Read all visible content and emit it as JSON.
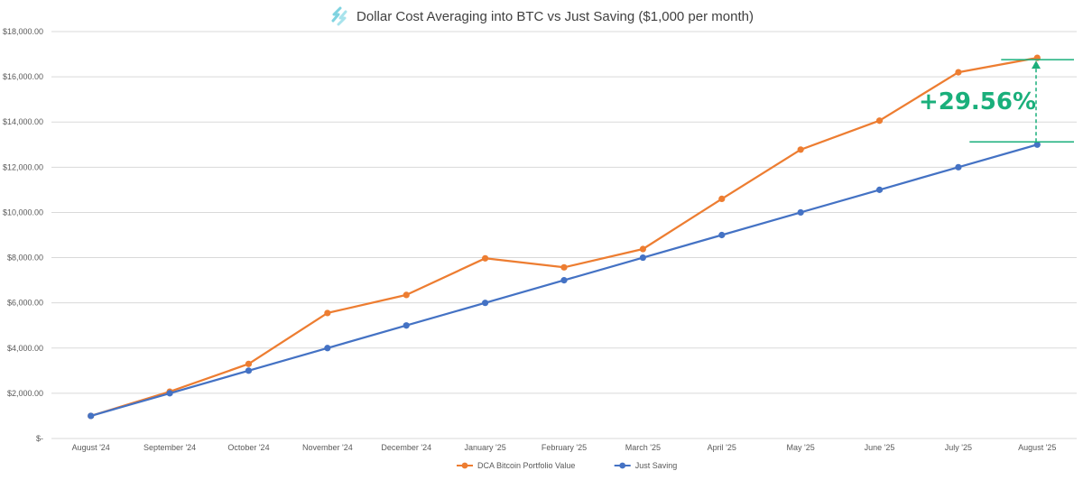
{
  "title": "Dollar Cost Averaging into BTC vs Just Saving ($1,000 per month)",
  "icon": "logo-icon",
  "chart_data": {
    "type": "line",
    "title": "Dollar Cost Averaging into BTC vs Just Saving ($1,000 per month)",
    "xlabel": "",
    "ylabel": "",
    "categories": [
      "August '24",
      "September '24",
      "October '24",
      "November '24",
      "December '24",
      "January '25",
      "February '25",
      "March '25",
      "April '25",
      "May '25",
      "June '25",
      "July '25",
      "August '25"
    ],
    "ylim": [
      0,
      18000
    ],
    "yticks": [
      0,
      2000,
      4000,
      6000,
      8000,
      10000,
      12000,
      14000,
      16000,
      18000
    ],
    "ytick_labels": [
      "$-",
      "$2,000.00",
      "$4,000.00",
      "$6,000.00",
      "$8,000.00",
      "$10,000.00",
      "$12,000.00",
      "$14,000.00",
      "$16,000.00",
      "$18,000.00"
    ],
    "grid": true,
    "legend_position": "bottom",
    "series": [
      {
        "name": "DCA Bitcoin Portfolio Value",
        "color": "#ed7d31",
        "values": [
          1000,
          2070,
          3300,
          5550,
          6350,
          7970,
          7570,
          8380,
          10600,
          12780,
          14060,
          16200,
          16840
        ]
      },
      {
        "name": "Just Saving",
        "color": "#4472c4",
        "values": [
          1000,
          2000,
          3000,
          4000,
          5000,
          6000,
          7000,
          8000,
          9000,
          10000,
          11000,
          12000,
          13000
        ]
      }
    ],
    "annotation": {
      "text": "+29.56%",
      "color": "#1aaf7b"
    }
  }
}
